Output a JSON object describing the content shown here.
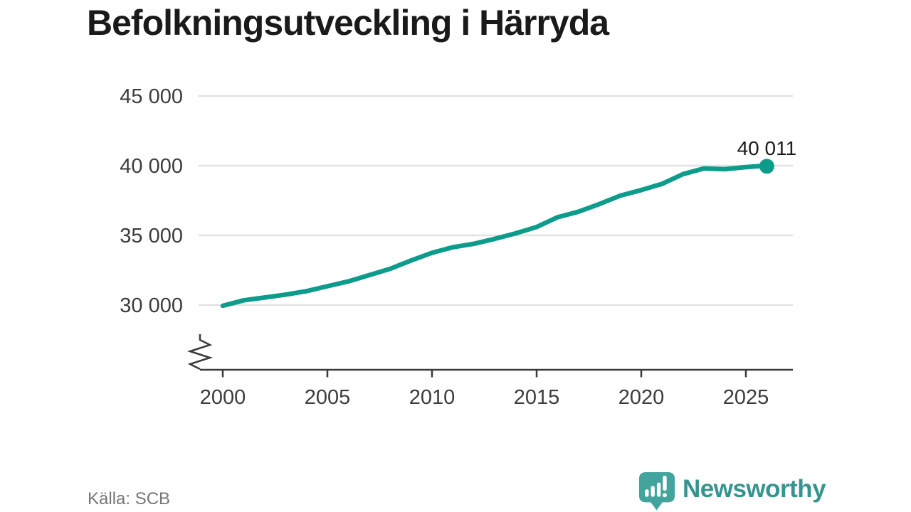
{
  "header": {
    "title": "Befolkningsutveckling i Härryda"
  },
  "chart_data": {
    "type": "line",
    "title": "Befolkningsutveckling i Härryda",
    "xlabel": "",
    "ylabel": "",
    "years": [
      2000,
      2001,
      2002,
      2003,
      2004,
      2005,
      2006,
      2007,
      2008,
      2009,
      2010,
      2011,
      2012,
      2013,
      2014,
      2015,
      2016,
      2017,
      2018,
      2019,
      2020,
      2021,
      2022,
      2023,
      2024,
      2025,
      2026
    ],
    "series": [
      {
        "name": "Befolkning",
        "values": [
          29950,
          30340,
          30540,
          30750,
          31000,
          31350,
          31700,
          32150,
          32600,
          33200,
          33750,
          34150,
          34400,
          34750,
          35150,
          35600,
          36300,
          36700,
          37250,
          37850,
          38250,
          38700,
          39400,
          39800,
          39750,
          39900,
          40011
        ]
      }
    ],
    "end_label": "40 011",
    "end_value": 40011,
    "yticks": {
      "values": [
        30000,
        35000,
        40000,
        45000
      ],
      "labels": [
        "30 000",
        "35 000",
        "40 000",
        "45 000"
      ]
    },
    "xticks": [
      2000,
      2005,
      2010,
      2015,
      2020,
      2025
    ],
    "ylim": [
      30000,
      45000
    ],
    "xlim": [
      2000,
      2027.3
    ],
    "grid": "horizontal-only",
    "axis_break": true,
    "line_color": "#0d9c8c"
  },
  "footer": {
    "source": "Källa: SCB",
    "brand": "Newsworthy"
  },
  "theme": {
    "accent": "#0d9c8c",
    "grid": "#e2e2e2",
    "axis": "#3a3a3a",
    "text_dark": "#1a1a1a",
    "text_axis": "#3c3c3c",
    "text_muted": "#767676",
    "brand_text": "#35948e",
    "brand_icon": "#43a49d"
  }
}
